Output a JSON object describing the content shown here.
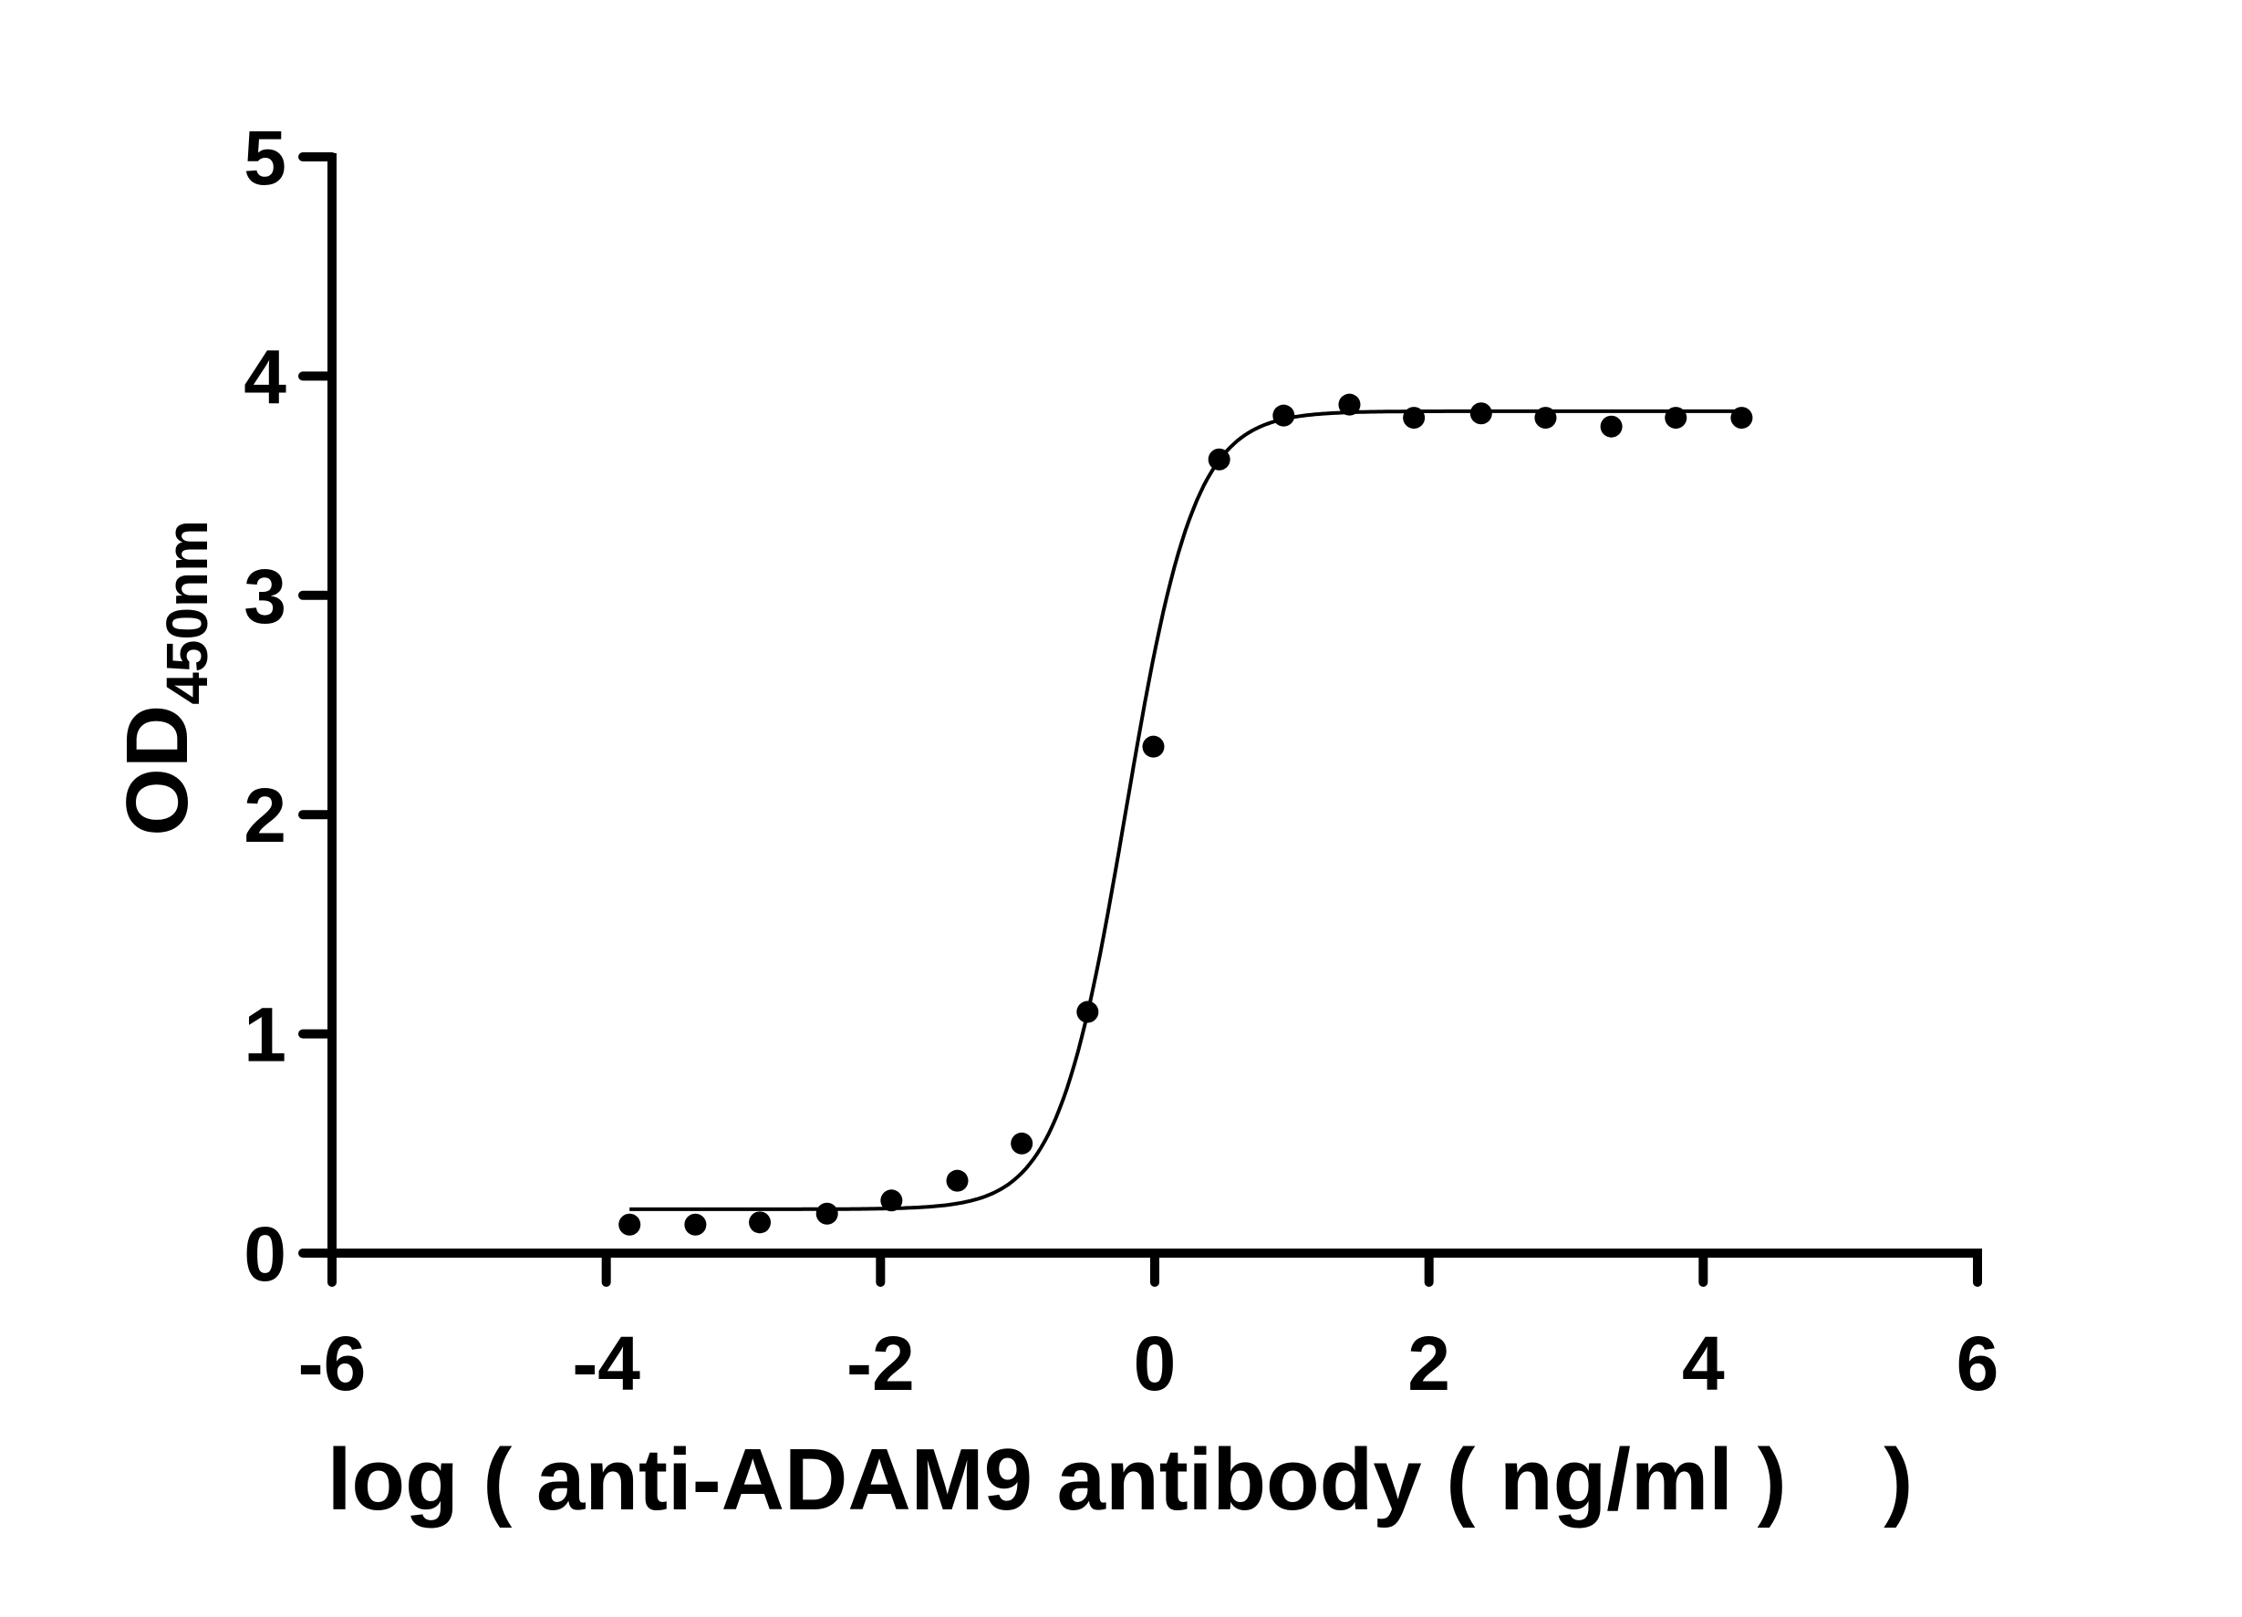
{
  "chart_data": {
    "type": "scatter",
    "title": "",
    "xlabel": "log ( anti-ADAM9 antibody ( ng/ml )    )",
    "ylabel": "OD",
    "ylabel_subscript": "450nm",
    "xlim": [
      -6,
      6
    ],
    "ylim": [
      0,
      5
    ],
    "xticks": [
      "-6",
      "-4",
      "-2",
      "0",
      "2",
      "4",
      "6"
    ],
    "yticks": [
      "0",
      "1",
      "2",
      "3",
      "4",
      "5"
    ],
    "grid": false,
    "colors": {
      "points": "#000000",
      "curve": "#000000",
      "axes": "#000000"
    },
    "series": [
      {
        "type": "scatter",
        "x": [
          -3.83,
          -3.35,
          -2.88,
          -2.39,
          -1.92,
          -1.44,
          -0.97,
          -0.49,
          -0.01,
          0.47,
          0.94,
          1.42,
          1.89,
          2.38,
          2.85,
          3.33,
          3.8,
          4.28
        ],
        "y": [
          0.13,
          0.13,
          0.14,
          0.18,
          0.24,
          0.33,
          0.5,
          1.1,
          2.31,
          3.62,
          3.82,
          3.87,
          3.81,
          3.83,
          3.81,
          3.77,
          3.81,
          3.81
        ]
      },
      {
        "type": "fit-curve-4PL",
        "bottom": 0.2,
        "top": 3.84,
        "logEC50": -0.21,
        "hill": 1.74,
        "x_range": [
          -3.83,
          4.28
        ]
      }
    ]
  }
}
